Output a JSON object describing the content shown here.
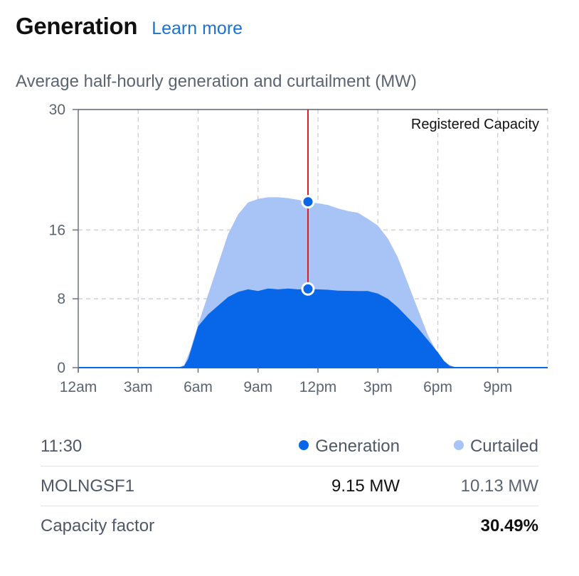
{
  "header": {
    "title": "Generation",
    "learn_more": "Learn more"
  },
  "chart_data": {
    "type": "area",
    "title": "Average half-hourly generation and curtailment (MW)",
    "xlabel": "",
    "ylabel": "",
    "xlim": [
      0,
      23.5
    ],
    "ylim": [
      0,
      30
    ],
    "x_ticks": [
      {
        "value": 0,
        "label": "12am"
      },
      {
        "value": 3,
        "label": "3am"
      },
      {
        "value": 6,
        "label": "6am"
      },
      {
        "value": 9,
        "label": "9am"
      },
      {
        "value": 12,
        "label": "12pm"
      },
      {
        "value": 15,
        "label": "3pm"
      },
      {
        "value": 18,
        "label": "6pm"
      },
      {
        "value": 21,
        "label": "9pm"
      }
    ],
    "y_ticks": [
      0,
      8,
      16,
      30
    ],
    "grid": true,
    "reference_line": {
      "value": 30,
      "label": "Registered Capacity"
    },
    "cursor_x": 11.5,
    "series": [
      {
        "name": "Generation",
        "color": "#0866e8",
        "points": [
          [
            0,
            0
          ],
          [
            5,
            0
          ],
          [
            5.3,
            0.2
          ],
          [
            5.5,
            1
          ],
          [
            5.7,
            2.5
          ],
          [
            6,
            4.8
          ],
          [
            6.5,
            6.2
          ],
          [
            7,
            7.2
          ],
          [
            7.5,
            8.2
          ],
          [
            8,
            8.8
          ],
          [
            8.5,
            9.1
          ],
          [
            9,
            8.9
          ],
          [
            9.5,
            9.2
          ],
          [
            10,
            9.1
          ],
          [
            10.5,
            9.2
          ],
          [
            11,
            9.1
          ],
          [
            11.5,
            9.15
          ],
          [
            12,
            9.1
          ],
          [
            12.5,
            9.05
          ],
          [
            13,
            8.95
          ],
          [
            14,
            8.9
          ],
          [
            14.5,
            8.9
          ],
          [
            15,
            8.6
          ],
          [
            15.5,
            8.0
          ],
          [
            16,
            7.0
          ],
          [
            16.5,
            5.8
          ],
          [
            17,
            4.6
          ],
          [
            17.5,
            3.2
          ],
          [
            18,
            1.8
          ],
          [
            18.3,
            0.8
          ],
          [
            18.6,
            0.2
          ],
          [
            19,
            0
          ],
          [
            23.5,
            0
          ]
        ]
      },
      {
        "name": "Curtailed",
        "color": "#a8c3f6",
        "points": [
          [
            0,
            0
          ],
          [
            5,
            0
          ],
          [
            5.3,
            0.3
          ],
          [
            5.6,
            2.0
          ],
          [
            6,
            5.0
          ],
          [
            6.5,
            8.5
          ],
          [
            7,
            12.0
          ],
          [
            7.5,
            15.5
          ],
          [
            8,
            17.8
          ],
          [
            8.5,
            19.2
          ],
          [
            9,
            19.6
          ],
          [
            9.5,
            19.8
          ],
          [
            10,
            19.8
          ],
          [
            10.5,
            19.7
          ],
          [
            11,
            19.5
          ],
          [
            11.5,
            19.28
          ],
          [
            12,
            19.1
          ],
          [
            12.5,
            18.9
          ],
          [
            13,
            18.5
          ],
          [
            13.5,
            18.2
          ],
          [
            14,
            18.0
          ],
          [
            14.5,
            17.3
          ],
          [
            15,
            16.5
          ],
          [
            15.5,
            15.0
          ],
          [
            16,
            12.8
          ],
          [
            16.5,
            9.8
          ],
          [
            17,
            6.8
          ],
          [
            17.5,
            3.8
          ],
          [
            18,
            1.6
          ],
          [
            18.4,
            0.5
          ],
          [
            18.8,
            0.1
          ],
          [
            19,
            0
          ],
          [
            23.5,
            0
          ]
        ]
      }
    ]
  },
  "table": {
    "time": "11:30",
    "gen_label": "Generation",
    "cur_label": "Curtailed",
    "station": "MOLNGSF1",
    "gen_value": "9.15 MW",
    "cur_value": "10.13 MW",
    "cf_label": "Capacity factor",
    "cf_value": "30.49%"
  }
}
